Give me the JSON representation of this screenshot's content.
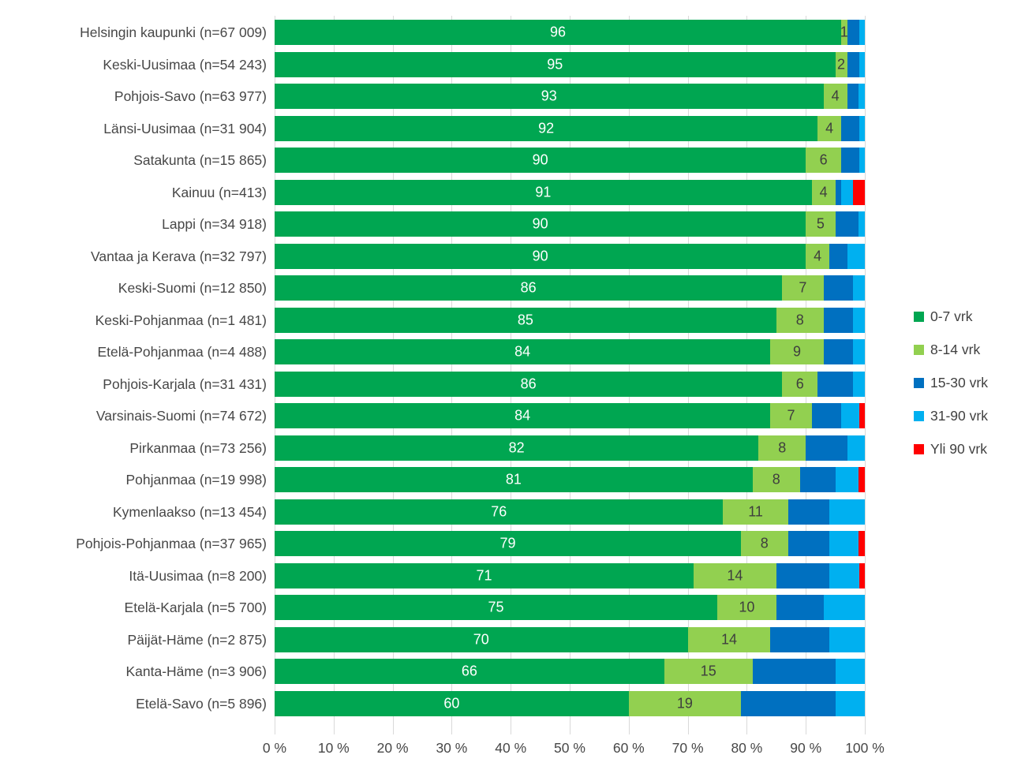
{
  "chart_data": {
    "type": "bar",
    "orientation": "horizontal",
    "stacked": true,
    "title": "",
    "xlabel": "",
    "ylabel": "",
    "xlim": [
      0,
      100
    ],
    "grid": true,
    "legend_position": "right",
    "x_tick_labels": [
      "0 %",
      "10 %",
      "20 %",
      "30 %",
      "40 %",
      "50 %",
      "60 %",
      "70 %",
      "80 %",
      "90 %",
      "100 %"
    ],
    "x_tick_values": [
      0,
      10,
      20,
      30,
      40,
      50,
      60,
      70,
      80,
      90,
      100
    ],
    "series_names": [
      "0-7 vrk",
      "8-14 vrk",
      "15-30 vrk",
      "31-90 vrk",
      "Yli 90 vrk"
    ],
    "series_colors": [
      "#00A651",
      "#92D050",
      "#0070C0",
      "#00B0F0",
      "#FF0000"
    ],
    "data_labels_shown_for_series": [
      0,
      1
    ],
    "data_label_colors": [
      "#FFFFFF",
      "#3E3E3E"
    ],
    "rows": [
      {
        "label": "Helsingin kaupunki (n=67 009)",
        "values": [
          96,
          1,
          2,
          1,
          0
        ]
      },
      {
        "label": "Keski-Uusimaa (n=54 243)",
        "values": [
          95,
          2,
          2,
          1,
          0
        ]
      },
      {
        "label": "Pohjois-Savo (n=63 977)",
        "values": [
          93,
          4,
          2,
          1,
          0
        ]
      },
      {
        "label": "Länsi-Uusimaa (n=31 904)",
        "values": [
          92,
          4,
          3,
          1,
          0
        ]
      },
      {
        "label": "Satakunta (n=15 865)",
        "values": [
          90,
          6,
          3,
          1,
          0
        ]
      },
      {
        "label": "Kainuu (n=413)",
        "values": [
          91,
          4,
          1,
          2,
          2
        ]
      },
      {
        "label": "Lappi (n=34 918)",
        "values": [
          90,
          5,
          4,
          1,
          0
        ]
      },
      {
        "label": "Vantaa ja Kerava (n=32 797)",
        "values": [
          90,
          4,
          3,
          3,
          0
        ]
      },
      {
        "label": "Keski-Suomi (n=12 850)",
        "values": [
          86,
          7,
          5,
          2,
          0
        ]
      },
      {
        "label": "Keski-Pohjanmaa (n=1 481)",
        "values": [
          85,
          8,
          5,
          2,
          0
        ]
      },
      {
        "label": "Etelä-Pohjanmaa (n=4 488)",
        "values": [
          84,
          9,
          5,
          2,
          0
        ]
      },
      {
        "label": "Pohjois-Karjala (n=31 431)",
        "values": [
          86,
          6,
          6,
          2,
          0
        ]
      },
      {
        "label": "Varsinais-Suomi (n=74 672)",
        "values": [
          84,
          7,
          5,
          3,
          1
        ]
      },
      {
        "label": "Pirkanmaa (n=73 256)",
        "values": [
          82,
          8,
          7,
          3,
          0
        ]
      },
      {
        "label": "Pohjanmaa (n=19 998)",
        "values": [
          81,
          8,
          6,
          4,
          1
        ]
      },
      {
        "label": "Kymenlaakso (n=13 454)",
        "values": [
          76,
          11,
          7,
          6,
          0
        ]
      },
      {
        "label": "Pohjois-Pohjanmaa (n=37 965)",
        "values": [
          79,
          8,
          7,
          5,
          1
        ]
      },
      {
        "label": "Itä-Uusimaa (n=8 200)",
        "values": [
          71,
          14,
          9,
          5,
          1
        ]
      },
      {
        "label": "Etelä-Karjala (n=5 700)",
        "values": [
          75,
          10,
          8,
          7,
          0
        ]
      },
      {
        "label": "Päijät-Häme (n=2 875)",
        "values": [
          70,
          14,
          10,
          6,
          0
        ]
      },
      {
        "label": "Kanta-Häme (n=3 906)",
        "values": [
          66,
          15,
          14,
          5,
          0
        ]
      },
      {
        "label": "Etelä-Savo (n=5 896)",
        "values": [
          60,
          19,
          16,
          5,
          0
        ]
      }
    ]
  },
  "legend": {
    "items": [
      {
        "label": "0-7 vrk",
        "color": "#00A651"
      },
      {
        "label": "8-14 vrk",
        "color": "#92D050"
      },
      {
        "label": "15-30 vrk",
        "color": "#0070C0"
      },
      {
        "label": "31-90 vrk",
        "color": "#00B0F0"
      },
      {
        "label": "Yli 90 vrk",
        "color": "#FF0000"
      }
    ]
  },
  "style_colors": {
    "gridline": "#D9D9D9",
    "axis_text": "#474747",
    "category_text": "#474747",
    "legend_text": "#404040",
    "background": "#FFFFFF"
  }
}
